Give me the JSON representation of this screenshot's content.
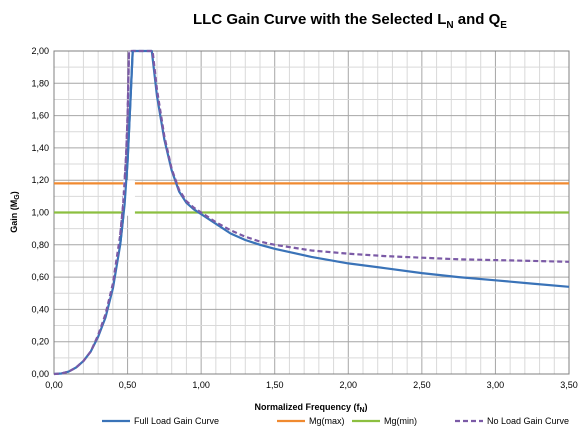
{
  "chart_data": {
    "type": "line",
    "title": {
      "main": "LLC Gain Curve with the Selected L",
      "sub1": "N",
      "mid": " and Q",
      "sub2": "E"
    },
    "xlabel": {
      "main": "Normalized Frequency (f",
      "sub": "N",
      "end": ")"
    },
    "ylabel": {
      "main": "Gain (M",
      "sub": "G",
      "end": ")"
    },
    "xlim": [
      0,
      3.5
    ],
    "ylim": [
      0,
      2.0
    ],
    "x_ticks": [
      "0,00",
      "0,50",
      "1,00",
      "1,50",
      "2,00",
      "2,50",
      "3,00",
      "3,50"
    ],
    "y_ticks": [
      "0,00",
      "0,20",
      "0,40",
      "0,60",
      "0,80",
      "1,00",
      "1,20",
      "1,40",
      "1,60",
      "1,80",
      "2,00"
    ],
    "grid": true,
    "legend_position": "bottom",
    "series": [
      {
        "name": "Full Load Gain Curve",
        "color": "#3a73b8",
        "style": "solid",
        "points": [
          [
            0,
            0
          ],
          [
            0.05,
            0.003
          ],
          [
            0.1,
            0.015
          ],
          [
            0.15,
            0.04
          ],
          [
            0.2,
            0.08
          ],
          [
            0.25,
            0.14
          ],
          [
            0.3,
            0.23
          ],
          [
            0.35,
            0.35
          ],
          [
            0.4,
            0.53
          ],
          [
            0.45,
            0.8
          ],
          [
            0.48,
            1.05
          ],
          [
            0.5,
            1.32
          ],
          [
            0.52,
            1.7
          ],
          [
            0.535,
            2.0
          ],
          [
            0.665,
            2.0
          ],
          [
            0.7,
            1.72
          ],
          [
            0.75,
            1.45
          ],
          [
            0.8,
            1.26
          ],
          [
            0.85,
            1.13
          ],
          [
            0.9,
            1.06
          ],
          [
            0.95,
            1.02
          ],
          [
            1.0,
            0.99
          ],
          [
            1.1,
            0.93
          ],
          [
            1.2,
            0.87
          ],
          [
            1.3,
            0.83
          ],
          [
            1.4,
            0.8
          ],
          [
            1.5,
            0.775
          ],
          [
            1.75,
            0.725
          ],
          [
            2.0,
            0.685
          ],
          [
            2.25,
            0.655
          ],
          [
            2.5,
            0.625
          ],
          [
            2.75,
            0.6
          ],
          [
            3.0,
            0.58
          ],
          [
            3.25,
            0.56
          ],
          [
            3.5,
            0.54
          ]
        ]
      },
      {
        "name": "Mg(max)",
        "color": "#f08a30",
        "style": "solid",
        "points": [
          [
            0,
            1.18
          ],
          [
            3.5,
            1.18
          ]
        ]
      },
      {
        "name": "Mg(min)",
        "color": "#8cbf40",
        "style": "solid",
        "points": [
          [
            0,
            1.0
          ],
          [
            3.5,
            1.0
          ]
        ]
      },
      {
        "name": "No Load Gain Curve",
        "color": "#7b5aa6",
        "style": "dashed",
        "points": [
          [
            0,
            0
          ],
          [
            0.05,
            0.003
          ],
          [
            0.1,
            0.015
          ],
          [
            0.15,
            0.04
          ],
          [
            0.2,
            0.08
          ],
          [
            0.25,
            0.14
          ],
          [
            0.3,
            0.24
          ],
          [
            0.35,
            0.37
          ],
          [
            0.4,
            0.56
          ],
          [
            0.45,
            0.86
          ],
          [
            0.47,
            1.05
          ],
          [
            0.49,
            1.35
          ],
          [
            0.5,
            1.6
          ],
          [
            0.51,
            2.0
          ],
          [
            0.67,
            2.0
          ],
          [
            0.7,
            1.76
          ],
          [
            0.75,
            1.47
          ],
          [
            0.8,
            1.27
          ],
          [
            0.85,
            1.14
          ],
          [
            0.9,
            1.07
          ],
          [
            0.95,
            1.03
          ],
          [
            1.0,
            1.0
          ],
          [
            1.1,
            0.94
          ],
          [
            1.2,
            0.89
          ],
          [
            1.3,
            0.85
          ],
          [
            1.4,
            0.82
          ],
          [
            1.5,
            0.8
          ],
          [
            1.75,
            0.765
          ],
          [
            2.0,
            0.745
          ],
          [
            2.25,
            0.73
          ],
          [
            2.5,
            0.72
          ],
          [
            2.75,
            0.71
          ],
          [
            3.0,
            0.705
          ],
          [
            3.25,
            0.7
          ],
          [
            3.5,
            0.695
          ]
        ]
      }
    ]
  }
}
